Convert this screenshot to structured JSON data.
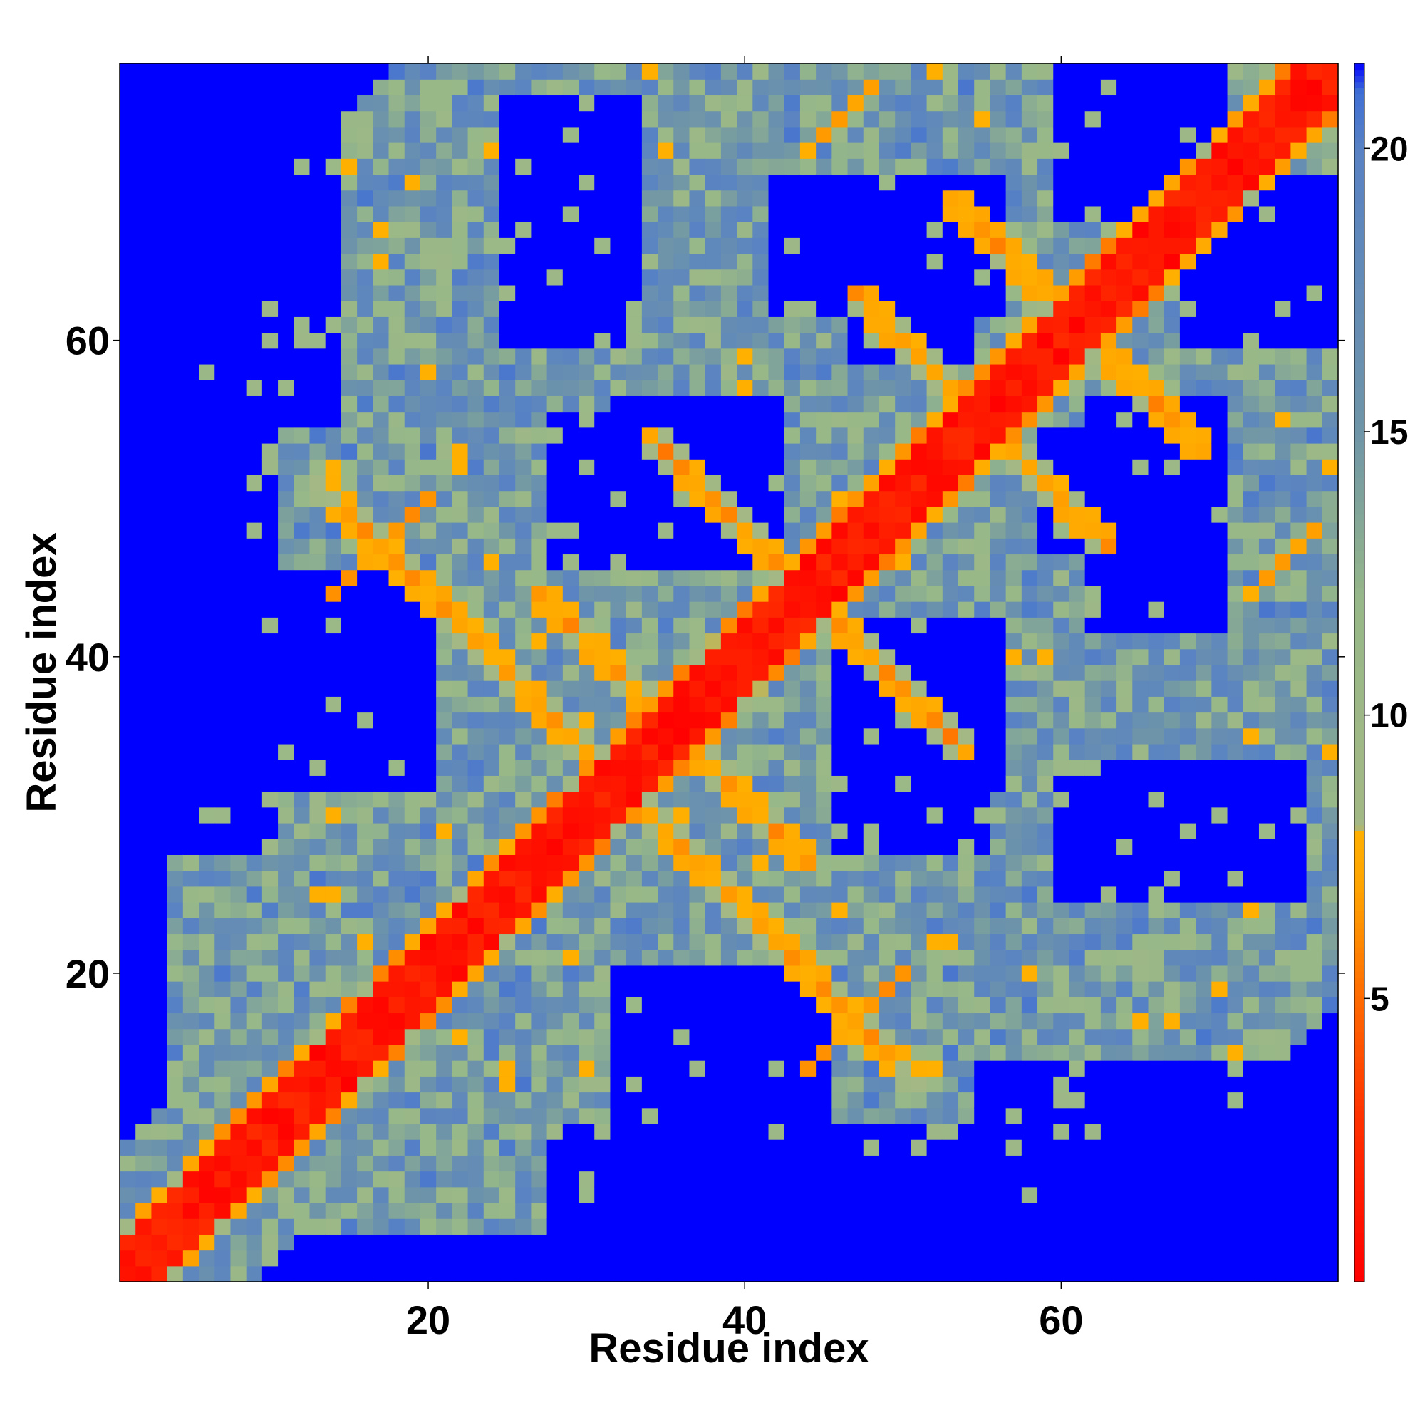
{
  "chart_data": {
    "type": "heatmap",
    "title": "",
    "xlabel": "Residue index",
    "ylabel": "Residue index",
    "n_residues": 77,
    "xlim": [
      1,
      77
    ],
    "ylim": [
      1,
      77
    ],
    "x_ticks": [
      20,
      40,
      60
    ],
    "y_ticks": [
      20,
      40,
      60
    ],
    "grid": false,
    "description_of_values": "symmetric inter-residue distance map; diagonal distances 0-3, contact bands 5-8, background saturated above 21",
    "colorbar": {
      "ticks": [
        5,
        10,
        15,
        20
      ],
      "range": [
        0,
        21.5
      ],
      "placement": "right",
      "stops": [
        {
          "value": 0,
          "color": "#ff0000"
        },
        {
          "value": 3,
          "color": "#ff3300"
        },
        {
          "value": 5,
          "color": "#ff6a00"
        },
        {
          "value": 7,
          "color": "#ffa500"
        },
        {
          "value": 8,
          "color": "#ffb000"
        },
        {
          "value": 8.01,
          "color": "#a3b884"
        },
        {
          "value": 12,
          "color": "#97b888"
        },
        {
          "value": 15,
          "color": "#6f95a8"
        },
        {
          "value": 20,
          "color": "#5882c4"
        },
        {
          "value": 21,
          "color": "#3f6fd4"
        },
        {
          "value": 21.5,
          "color": "#0000ff"
        }
      ]
    },
    "features": {
      "diagonal_halfwidth": 2.2,
      "strand_pairs_antiparallel": [
        {
          "sum": 88,
          "i_range": [
            35,
            45
          ],
          "dist": 5.2
        },
        {
          "sum": 110,
          "i_range": [
            48,
            62
          ],
          "dist": 5.4
        },
        {
          "sum": 122,
          "i_range": [
            54,
            66
          ],
          "dist": 5.6
        },
        {
          "sum": 64,
          "i_range": [
            14,
            20
          ],
          "dist": 5.8
        },
        {
          "sum": 71,
          "i_range": [
            28,
            33
          ],
          "dist": 5.5
        }
      ],
      "strand_pairs_parallel": [
        {
          "offset": 30,
          "i_range": [
            14,
            20
          ],
          "dist": 6.0
        },
        {
          "offset": 28,
          "i_range": [
            44,
            48
          ],
          "dist": 6.2
        }
      ],
      "empty_regions": [
        {
          "x": [
            32,
            42
          ],
          "y": [
            48,
            56
          ]
        },
        {
          "x": [
            47,
            54
          ],
          "y": [
            59,
            69
          ]
        },
        {
          "x": [
            46,
            55
          ],
          "y": [
            28,
            41
          ]
        },
        {
          "x": [
            62,
            70
          ],
          "y": [
            42,
            56
          ]
        },
        {
          "x": [
            25,
            33
          ],
          "y": [
            60,
            75
          ]
        },
        {
          "x": [
            6,
            14
          ],
          "y": [
            60,
            77
          ]
        },
        {
          "x": [
            60,
            70
          ],
          "y": [
            68,
            77
          ]
        },
        {
          "x": [
            32,
            45
          ],
          "y": [
            2,
            20
          ]
        },
        {
          "x": [
            55,
            77
          ],
          "y": [
            1,
            14
          ]
        },
        {
          "x": [
            1,
            10
          ],
          "y": [
            28,
            55
          ]
        }
      ]
    }
  }
}
